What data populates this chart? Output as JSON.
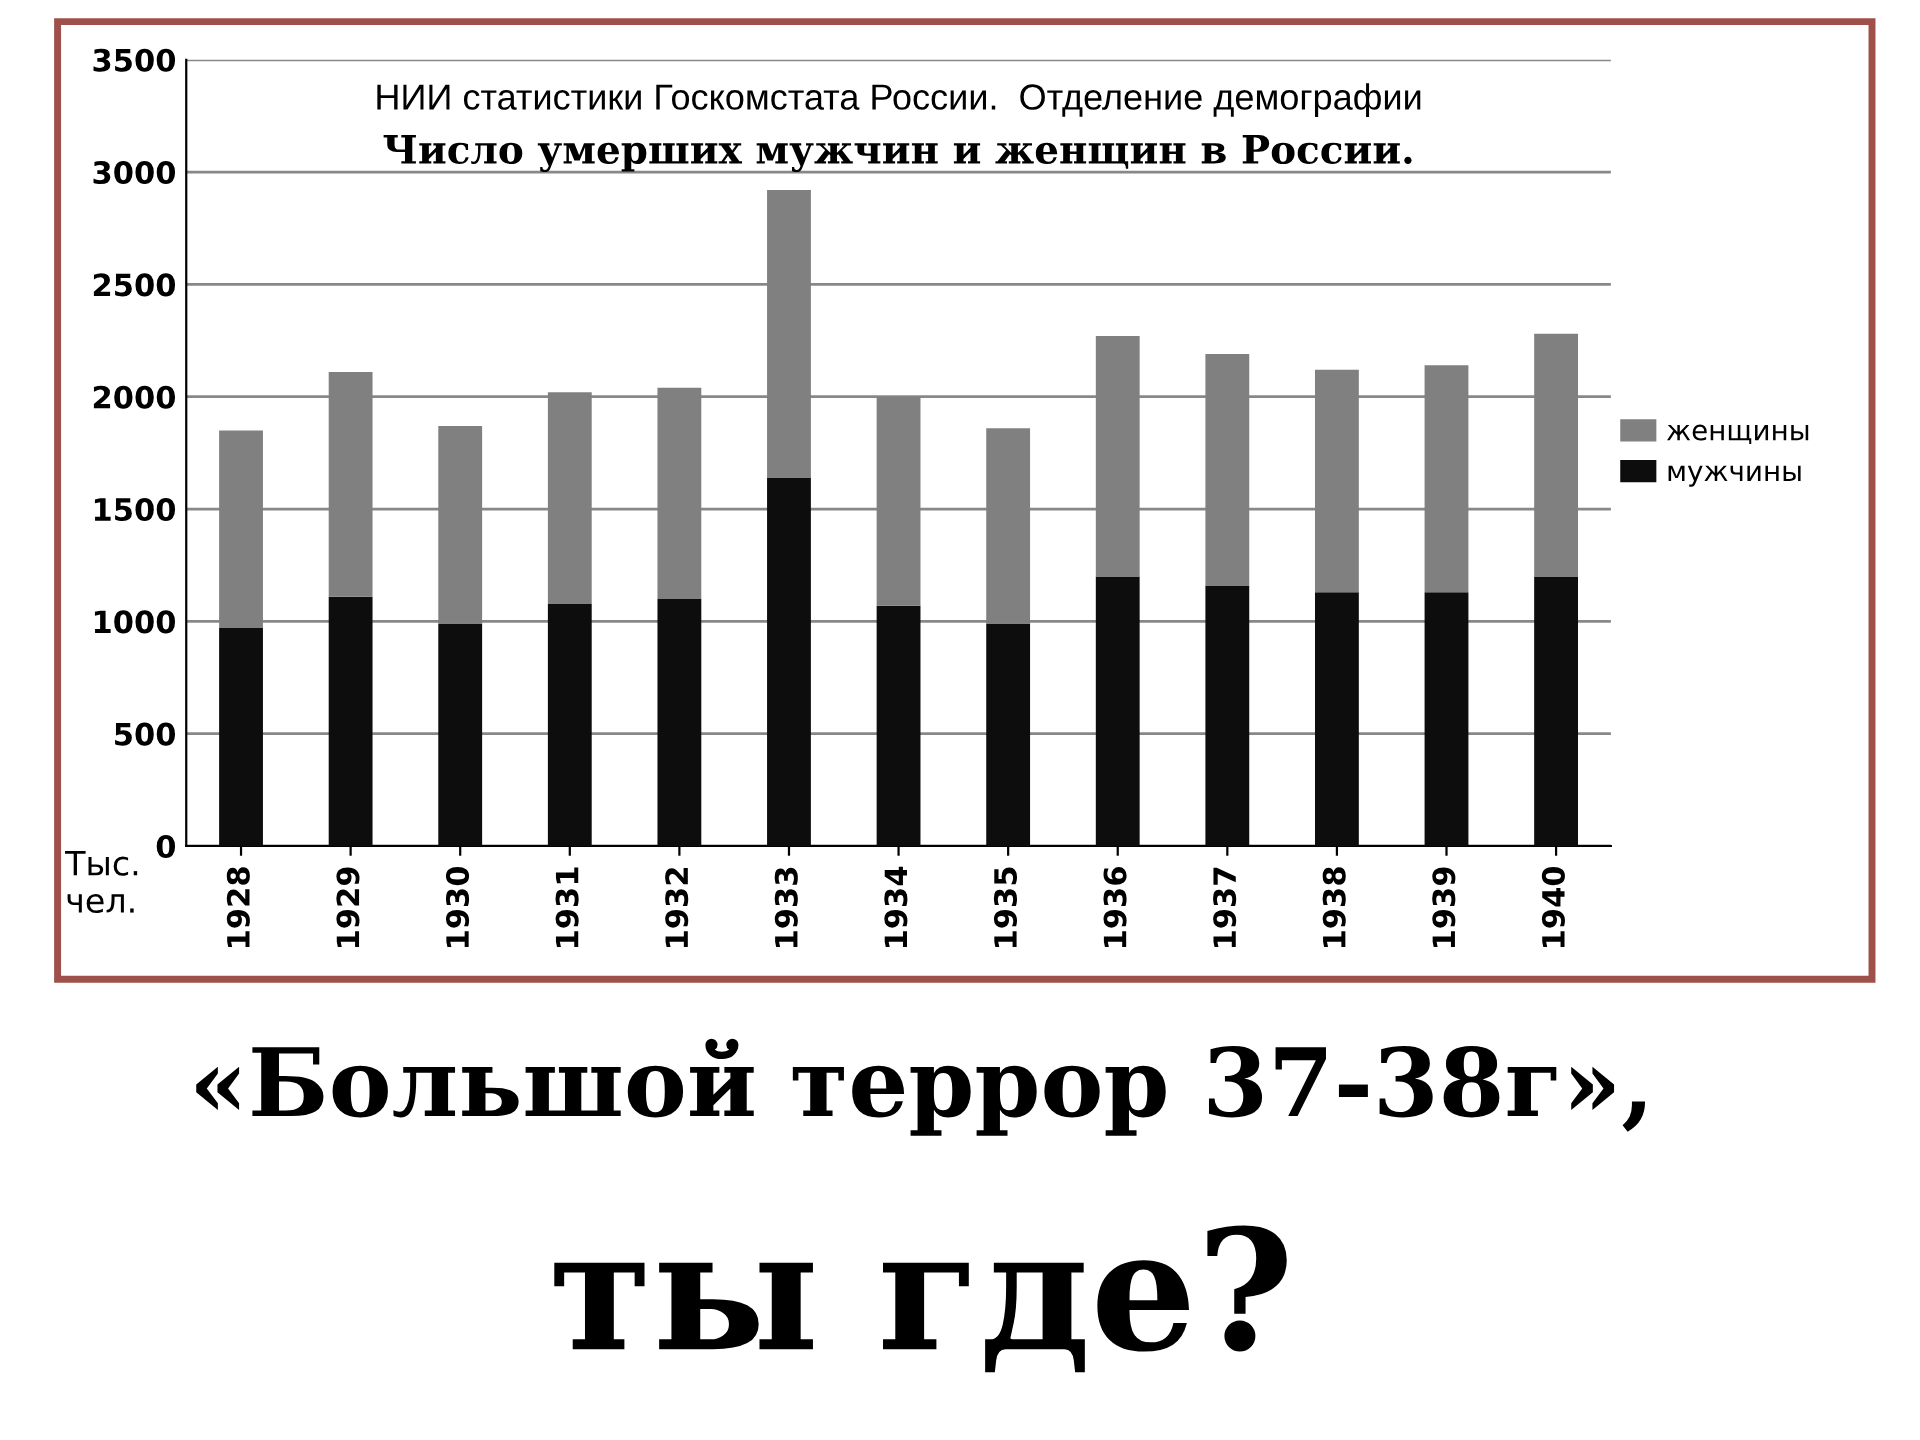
{
  "chart_data": {
    "type": "bar",
    "stacked": true,
    "subtitle": "НИИ статистики Госкомстата России.  Отделение демографии",
    "title": "Число умерших мужчин и женщин в России.",
    "ylabel": "Тыс.\nчел.",
    "categories": [
      "1928",
      "1929",
      "1930",
      "1931",
      "1932",
      "1933",
      "1934",
      "1935",
      "1936",
      "1937",
      "1938",
      "1939",
      "1940"
    ],
    "series": [
      {
        "name": "мужчины",
        "color": "#0d0d0d",
        "values": [
          970,
          1110,
          990,
          1080,
          1100,
          1640,
          1070,
          990,
          1200,
          1160,
          1130,
          1130,
          1200
        ]
      },
      {
        "name": "женщины",
        "color": "#808080",
        "values": [
          880,
          1000,
          880,
          940,
          940,
          1280,
          930,
          870,
          1070,
          1030,
          990,
          1010,
          1080
        ]
      }
    ],
    "ylim": [
      0,
      3500
    ],
    "yticks": [
      0,
      500,
      1000,
      1500,
      2000,
      2500,
      3000,
      3500
    ],
    "grid": "y",
    "legend": "right",
    "annotations": [
      "«Большой террор 37-38г»,",
      "ты где?"
    ]
  }
}
